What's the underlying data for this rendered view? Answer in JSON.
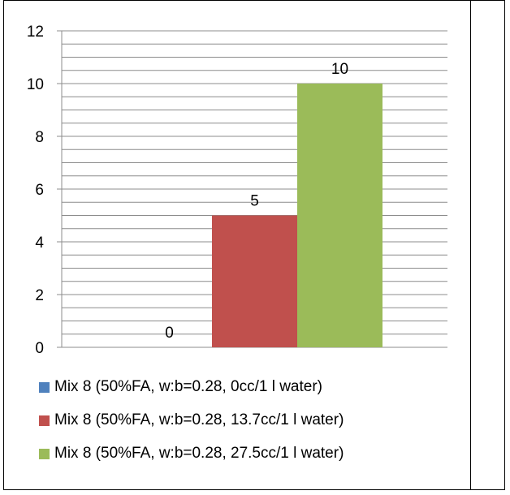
{
  "chart_data": {
    "type": "bar",
    "categories": [
      ""
    ],
    "series": [
      {
        "name": "Mix 8 (50%FA, w:b=0.28, 0cc/1 l water)",
        "values": [
          0
        ],
        "color": "#4f81bd"
      },
      {
        "name": "Mix 8 (50%FA, w:b=0.28, 13.7cc/1 l water)",
        "values": [
          5
        ],
        "color": "#c0504d"
      },
      {
        "name": "Mix 8 (50%FA, w:b=0.28, 27.5cc/1 l water)",
        "values": [
          10
        ],
        "color": "#9bbb59"
      }
    ],
    "data_labels": [
      "0",
      "5",
      "10"
    ],
    "y_ticks": [
      "0",
      "2",
      "4",
      "6",
      "8",
      "10",
      "12"
    ],
    "ylim": [
      0,
      12
    ],
    "minor_gridline_step": 0.5,
    "grid": true,
    "legend_position": "bottom",
    "title": "",
    "xlabel": "",
    "ylabel": ""
  }
}
